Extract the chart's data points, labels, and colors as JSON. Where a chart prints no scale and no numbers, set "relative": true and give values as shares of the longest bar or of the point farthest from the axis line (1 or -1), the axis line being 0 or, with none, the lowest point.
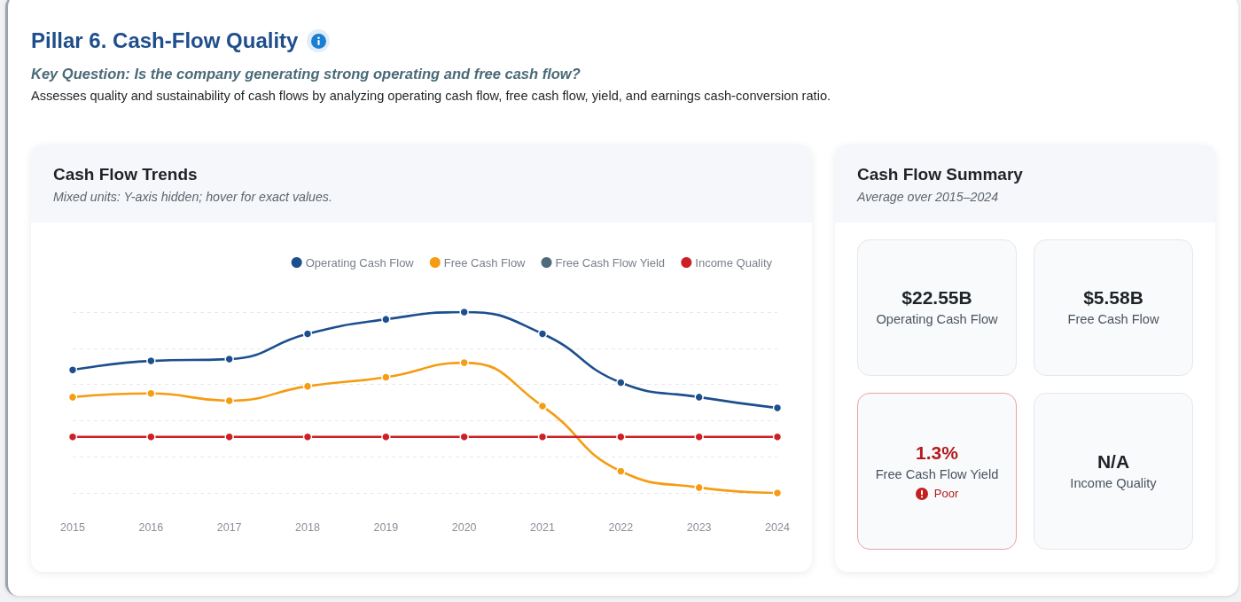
{
  "chart_data": [
    {
      "type": "other",
      "title": "Pillar 6. Cash-Flow Quality",
      "subtitle": "Key Question: Is the company generating strong operating and free cash flow?",
      "annotations": [
        "Assesses quality and sustainability of cash flows by analyzing operating cash flow, free cash flow, yield, and earnings cash-conversion ratio."
      ]
    },
    {
      "type": "line",
      "title": "Cash Flow Trends",
      "subtitle": "Mixed units: Y-axis hidden; hover for exact values.",
      "relative": true,
      "categories": [
        "2015",
        "2016",
        "2017",
        "2018",
        "2019",
        "2020",
        "2021",
        "2022",
        "2023",
        "2024"
      ],
      "series": [
        {
          "name": "Operating Cash Flow",
          "color": "#1c4f8e",
          "values": [
            0.68,
            0.73,
            0.74,
            0.88,
            0.96,
            1,
            0.88,
            0.61,
            0.53,
            0.47
          ]
        },
        {
          "name": "Free Cash Flow",
          "color": "#f59c12",
          "values": [
            0.53,
            0.55,
            0.51,
            0.59,
            0.64,
            0.72,
            0.48,
            0.12,
            0.03,
            0
          ]
        },
        {
          "name": "Free Cash Flow Yield",
          "color": "#4e6a7b",
          "values": [
            null,
            null,
            null,
            null,
            null,
            null,
            null,
            null,
            null,
            null
          ]
        },
        {
          "name": "Income Quality",
          "color": "#cc1f26",
          "values": [
            0.31,
            0.31,
            0.31,
            0.31,
            0.31,
            0.31,
            0.31,
            0.31,
            0.31,
            0.31
          ]
        }
      ],
      "grid": "y",
      "legend": "top right",
      "marker": "circle",
      "line_style": "solid"
    },
    {
      "type": "other",
      "title": "Cash Flow Summary",
      "subtitle": "Average over 2015–2024",
      "annotations": [
        "$22.55B",
        "Operating Cash Flow",
        "$5.58B",
        "Free Cash Flow",
        "1.3%",
        "Free Cash Flow Yield",
        "Poor",
        "N/A",
        "Income Quality"
      ]
    }
  ]
}
